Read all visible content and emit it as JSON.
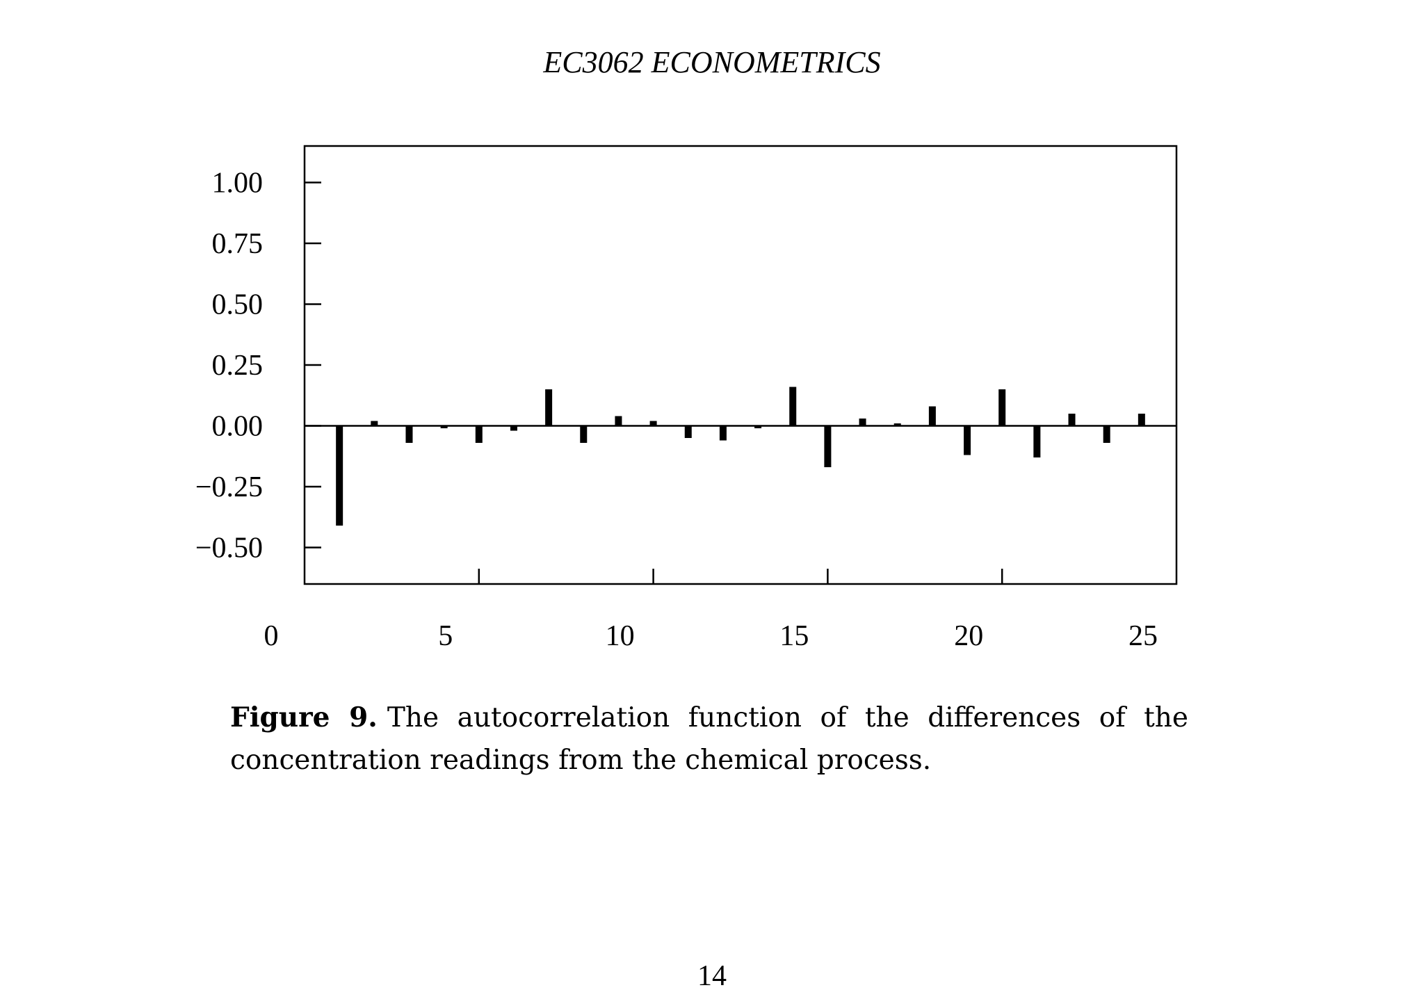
{
  "header": {
    "running_head": "EC3062 ECONOMETRICS"
  },
  "chart_data": {
    "type": "bar",
    "title": "",
    "xlabel": "",
    "ylabel": "",
    "xlim": [
      0,
      25
    ],
    "ylim": [
      -0.65,
      1.15
    ],
    "x_ticks": [
      "0",
      "5",
      "10",
      "15",
      "20",
      "25"
    ],
    "y_ticks": [
      "1.00",
      "0.75",
      "0.50",
      "0.25",
      "0.00",
      "−0.25",
      "−0.50"
    ],
    "y_tick_values": [
      1.0,
      0.75,
      0.5,
      0.25,
      0.0,
      -0.25,
      -0.5
    ],
    "grid": false,
    "x": [
      1,
      2,
      3,
      4,
      5,
      6,
      7,
      8,
      9,
      10,
      11,
      12,
      13,
      14,
      15,
      16,
      17,
      18,
      19,
      20,
      21,
      22,
      23,
      24
    ],
    "values": [
      -0.41,
      0.02,
      -0.07,
      -0.01,
      -0.07,
      -0.02,
      0.15,
      -0.07,
      0.04,
      0.02,
      -0.05,
      -0.06,
      -0.01,
      0.16,
      -0.17,
      0.03,
      0.01,
      0.08,
      -0.12,
      0.15,
      -0.13,
      0.05,
      -0.07,
      0.05
    ]
  },
  "caption": {
    "label": "Figure 9.",
    "text": "The autocorrelation function of the differences of the concentration readings from the chemical process."
  },
  "footer": {
    "page_number": "14"
  }
}
